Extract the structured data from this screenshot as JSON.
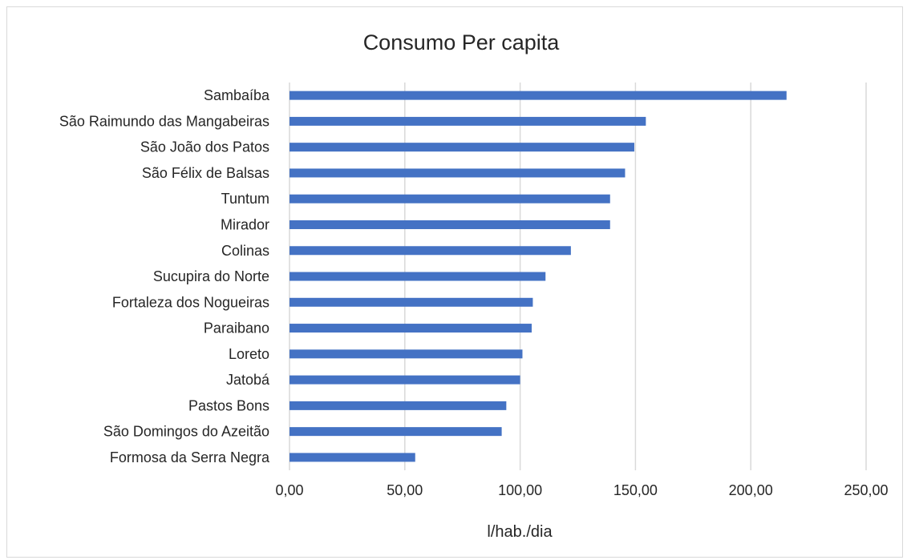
{
  "chart_data": {
    "type": "bar",
    "orientation": "horizontal",
    "title": "Consumo Per capita",
    "xlabel": "l/hab./dia",
    "ylabel": "",
    "categories": [
      "Sambaíba",
      "São Raimundo das Mangabeiras",
      "São João dos Patos",
      "São Félix de Balsas",
      "Tuntum",
      "Mirador",
      "Colinas",
      "Sucupira do Norte",
      "Fortaleza dos Nogueiras",
      "Paraibano",
      "Loreto",
      "Jatobá",
      "Pastos Bons",
      "São Domingos do Azeitão",
      "Formosa da Serra Negra"
    ],
    "values": [
      215.5,
      154.5,
      149.5,
      145.5,
      139,
      139,
      122,
      111,
      105.5,
      105,
      101,
      100,
      94,
      92,
      54.5
    ],
    "xlim": [
      0,
      250
    ],
    "xticks": [
      "0,00",
      "50,00",
      "100,00",
      "150,00",
      "200,00",
      "250,00"
    ],
    "grid": true,
    "legend": "none",
    "bar_color": "#4472c4"
  }
}
